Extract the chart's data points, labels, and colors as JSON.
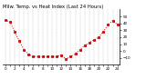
{
  "title": "Milw. Temp. vs Heat Index (Last 24 Hours)",
  "line_color": "#cc0000",
  "bg_color": "#ffffff",
  "grid_color": "#bbbbbb",
  "ylim": [
    -20,
    60
  ],
  "yticks": [
    -10,
    0,
    10,
    20,
    30,
    40,
    50
  ],
  "temperatures": [
    45,
    42,
    28,
    14,
    2,
    -5,
    -8,
    -8,
    -8,
    -8,
    -8,
    -8,
    -6,
    -12,
    -8,
    -4,
    2,
    8,
    12,
    16,
    20,
    28,
    38,
    44,
    38
  ],
  "title_fontsize": 3.8,
  "tick_fontsize": 3.0,
  "line_width": 0.7,
  "marker_size": 1.2,
  "right_ytick_labels": [
    "-10",
    "0",
    "10",
    "20",
    "30",
    "40",
    "50"
  ]
}
